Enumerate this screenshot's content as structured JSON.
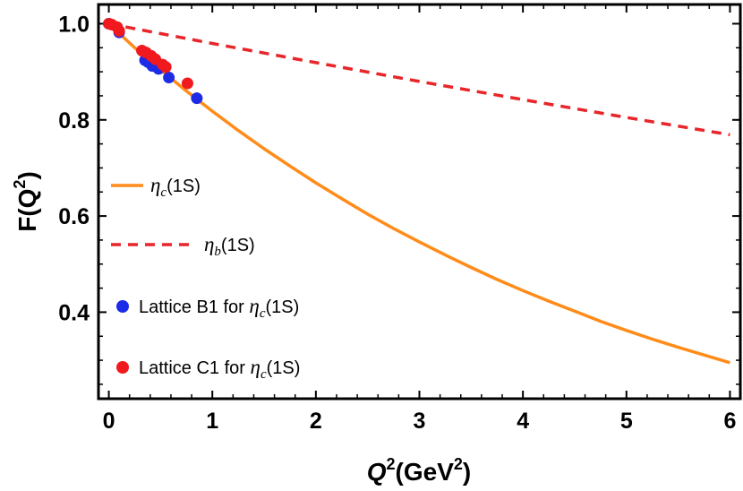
{
  "chart_data": {
    "type": "line",
    "xlabel": {
      "base": "Q",
      "sup": "2",
      "unit_open": "(GeV",
      "unit_sup": "2",
      "unit_close": ")"
    },
    "ylabel": {
      "prefix": "F(Q",
      "sup": "2",
      "suffix": ")"
    },
    "xlim": [
      -0.1,
      6.1
    ],
    "ylim": [
      0.22,
      1.04
    ],
    "x_ticks": [
      0,
      1,
      2,
      3,
      4,
      5,
      6
    ],
    "x_tick_labels": [
      "0",
      "1",
      "2",
      "3",
      "4",
      "5",
      "6"
    ],
    "y_ticks": [
      0.4,
      0.6,
      0.8,
      1.0
    ],
    "y_tick_labels": [
      "0.4",
      "0.6",
      "0.8",
      "1.0"
    ],
    "grid": false,
    "legend_position": "left",
    "series": [
      {
        "id": "eta_c",
        "kind": "line",
        "style": "solid",
        "color": "#ff8c1a",
        "legend": {
          "symbol": "η",
          "sub": "c",
          "tail": "(1S)"
        },
        "x": [
          0,
          0.25,
          0.5,
          0.75,
          1,
          1.25,
          1.5,
          1.75,
          2,
          2.25,
          2.5,
          2.75,
          3,
          3.25,
          3.5,
          3.75,
          4,
          4.25,
          4.5,
          4.75,
          5,
          5.25,
          5.5,
          5.75,
          6
        ],
        "y": [
          1.0,
          0.95,
          0.904,
          0.86,
          0.818,
          0.778,
          0.74,
          0.704,
          0.669,
          0.636,
          0.604,
          0.574,
          0.546,
          0.519,
          0.493,
          0.468,
          0.445,
          0.423,
          0.402,
          0.381,
          0.362,
          0.344,
          0.327,
          0.311,
          0.295
        ]
      },
      {
        "id": "eta_b",
        "kind": "line",
        "style": "dashed",
        "color": "#e8262a",
        "legend": {
          "symbol": "η",
          "sub": "b",
          "tail": "(1S)"
        },
        "x": [
          0,
          1,
          2,
          3,
          4,
          5,
          6
        ],
        "y": [
          1.0,
          0.959,
          0.919,
          0.88,
          0.842,
          0.805,
          0.769
        ]
      },
      {
        "id": "lattice_b1",
        "kind": "scatter",
        "color": "#1c2be8",
        "legend": {
          "text": "Lattice B1 for ",
          "symbol": "η",
          "sub": "c",
          "tail": "(1S)"
        },
        "x": [
          0.0,
          0.1,
          0.35,
          0.38,
          0.42,
          0.48,
          0.58,
          0.85
        ],
        "y": [
          1.0,
          0.982,
          0.924,
          0.92,
          0.912,
          0.906,
          0.888,
          0.845
        ]
      },
      {
        "id": "lattice_c1",
        "kind": "scatter",
        "color": "#f0191e",
        "legend": {
          "text": "Lattice C1 for ",
          "symbol": "η",
          "sub": "c",
          "tail": "(1S)"
        },
        "x": [
          0.0,
          0.03,
          0.08,
          0.1,
          0.32,
          0.36,
          0.41,
          0.45,
          0.52,
          0.55,
          0.76
        ],
        "y": [
          1.0,
          0.998,
          0.993,
          0.985,
          0.944,
          0.94,
          0.933,
          0.926,
          0.915,
          0.91,
          0.876
        ]
      }
    ]
  }
}
